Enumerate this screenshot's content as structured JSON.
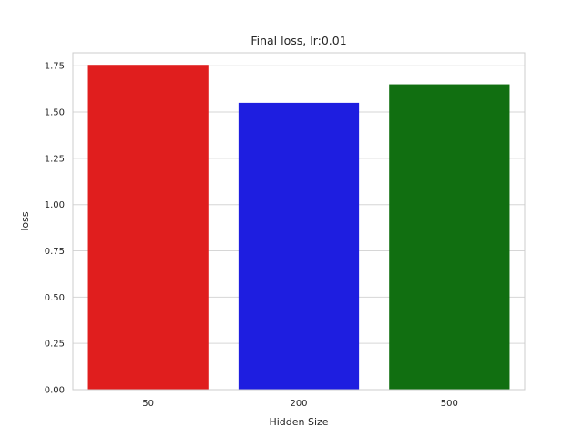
{
  "chart_data": {
    "type": "bar",
    "title": "Final loss, lr:0.01",
    "xlabel": "Hidden Size",
    "ylabel": "loss",
    "categories": [
      "50",
      "200",
      "500"
    ],
    "values": [
      1.755,
      1.55,
      1.65
    ],
    "colors": [
      "#e01e1e",
      "#1e1ee0",
      "#116f11"
    ],
    "ylim": [
      0,
      1.82
    ],
    "yticks": [
      "0.00",
      "0.25",
      "0.50",
      "0.75",
      "1.00",
      "1.25",
      "1.50",
      "1.75"
    ],
    "grid": "horizontal",
    "style": "seaborn-whitegrid"
  }
}
